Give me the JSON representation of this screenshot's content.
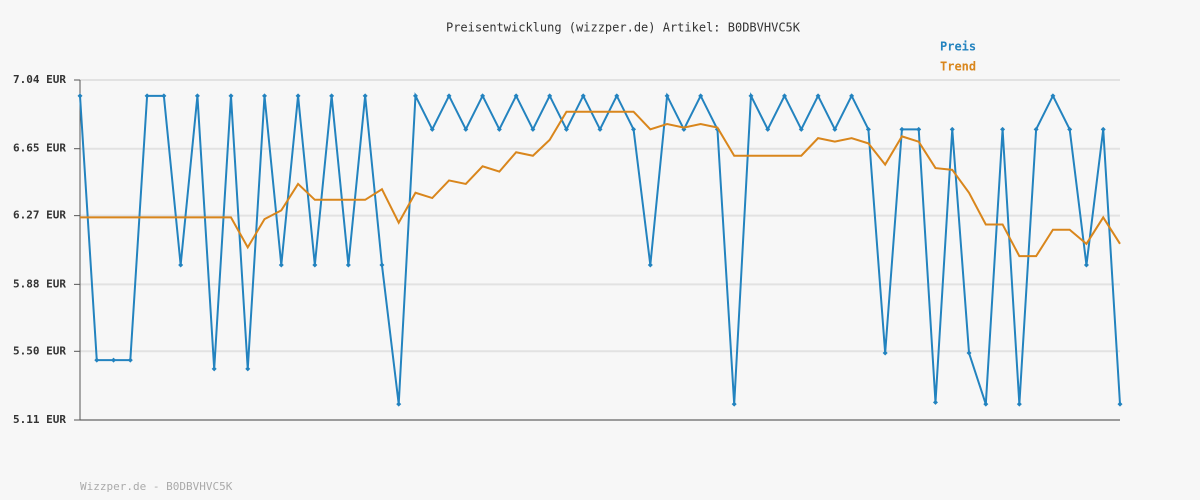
{
  "chart_data": {
    "type": "line",
    "title": "Preisentwicklung (wizzper.de) Artikel: B0DBVHVC5K",
    "footer": "Wizzper.de - B0DBVHVC5K",
    "categories": [
      null,
      null,
      null,
      null,
      null,
      null,
      null,
      null,
      null,
      null,
      null,
      null,
      null,
      null,
      null,
      null,
      null,
      null,
      null,
      null,
      null,
      null,
      null,
      null,
      null,
      null,
      null,
      null,
      null,
      null,
      null,
      null,
      null,
      null,
      null,
      null,
      null,
      null,
      null,
      null,
      null,
      null,
      null,
      null,
      null,
      null,
      null,
      null,
      null,
      null,
      null,
      null,
      null,
      null,
      null,
      null,
      null,
      null,
      null,
      null,
      null,
      null,
      null
    ],
    "series": [
      {
        "name": "Preis",
        "color": "#2383bf",
        "markers": true,
        "values": [
          6.95,
          5.45,
          5.45,
          5.45,
          6.95,
          6.95,
          5.99,
          6.95,
          5.4,
          6.95,
          5.4,
          6.95,
          5.99,
          6.95,
          5.99,
          6.95,
          5.99,
          6.95,
          5.99,
          5.2,
          6.95,
          6.76,
          6.95,
          6.76,
          6.95,
          6.76,
          6.95,
          6.76,
          6.95,
          6.76,
          6.95,
          6.76,
          6.95,
          6.76,
          5.99,
          6.95,
          6.76,
          6.95,
          6.76,
          5.2,
          6.95,
          6.76,
          6.95,
          6.76,
          6.95,
          6.76,
          6.95,
          6.76,
          5.49,
          6.76,
          6.76,
          5.21,
          6.76,
          5.49,
          5.2,
          6.76,
          5.2,
          6.76,
          6.95,
          6.76,
          5.99,
          6.76,
          5.2
        ]
      },
      {
        "name": "Trend",
        "color": "#d9861c",
        "markers": false,
        "values": [
          6.26,
          6.26,
          6.26,
          6.26,
          6.26,
          6.26,
          6.26,
          6.26,
          6.26,
          6.26,
          6.09,
          6.25,
          6.3,
          6.45,
          6.36,
          6.36,
          6.36,
          6.36,
          6.42,
          6.23,
          6.4,
          6.37,
          6.47,
          6.45,
          6.55,
          6.52,
          6.63,
          6.61,
          6.7,
          6.86,
          6.86,
          6.86,
          6.86,
          6.86,
          6.76,
          6.79,
          6.77,
          6.79,
          6.77,
          6.61,
          6.61,
          6.61,
          6.61,
          6.61,
          6.71,
          6.69,
          6.71,
          6.68,
          6.56,
          6.72,
          6.69,
          6.54,
          6.53,
          6.4,
          6.22,
          6.22,
          6.04,
          6.04,
          6.19,
          6.19,
          6.11,
          6.26,
          6.11
        ]
      }
    ],
    "ylim": [
      5.11,
      7.04
    ],
    "yticks": [
      {
        "value": 5.11,
        "label": "5.11 EUR"
      },
      {
        "value": 5.5,
        "label": "5.50 EUR"
      },
      {
        "value": 5.88,
        "label": "5.88 EUR"
      },
      {
        "value": 6.27,
        "label": "6.27 EUR"
      },
      {
        "value": 6.65,
        "label": "6.65 EUR"
      },
      {
        "value": 7.04,
        "label": "7.04 EUR"
      }
    ],
    "grid": true,
    "legend": "top-right"
  }
}
